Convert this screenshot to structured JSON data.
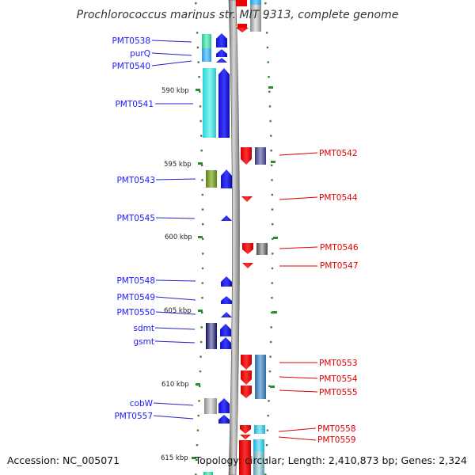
{
  "title": "Prochlorococcus marinus str. MIT 9313, complete genome",
  "footer": {
    "accession": "Accession: NC_005071",
    "summary": "Topology: circular; Length: 2,410,873 bp; Genes: 2,324"
  },
  "kbp_ticks": [
    "590 kbp",
    "595 kbp",
    "600 kbp",
    "605 kbp",
    "610 kbp",
    "615 kbp"
  ],
  "colors": {
    "forward_strand": "#0000ee",
    "reverse_strand": "#ee0000",
    "backbone": "#9a9a9a",
    "tick_marks": "#2e8b2e"
  },
  "left_genes": [
    {
      "label": "PMT0538",
      "color": "#3cd6a0"
    },
    {
      "label": "purQ",
      "color": "#2aaee0"
    },
    {
      "label": "PMT0540",
      "color": "#2aaee0"
    },
    {
      "label": "PMT0541",
      "color": "#28d8d8"
    },
    {
      "label": "PMT0543",
      "color": "#6a8c22"
    },
    {
      "label": "PMT0545",
      "color": ""
    },
    {
      "label": "PMT0548",
      "color": ""
    },
    {
      "label": "PMT0549",
      "color": ""
    },
    {
      "label": "PMT0550",
      "color": ""
    },
    {
      "label": "sdmt",
      "color": "#1a1a6e"
    },
    {
      "label": "gsmt",
      "color": "#1a1a6e"
    },
    {
      "label": "cobW",
      "color": "#9a9a9a"
    },
    {
      "label": "PMT0557",
      "color": ""
    }
  ],
  "right_genes": [
    {
      "label": "PMT0542",
      "color": "#4a4a88"
    },
    {
      "label": "PMT0544",
      "color": ""
    },
    {
      "label": "PMT0546",
      "color": "#5a5a5a"
    },
    {
      "label": "PMT0547",
      "color": ""
    },
    {
      "label": "PMT0553",
      "color": "#3a78b0"
    },
    {
      "label": "PMT0554",
      "color": "#3a78b0"
    },
    {
      "label": "PMT0555",
      "color": "#3a78b0"
    },
    {
      "label": "PMT0558",
      "color": "#28c0d8"
    },
    {
      "label": "PMT0559",
      "color": "#28c0d8"
    }
  ]
}
